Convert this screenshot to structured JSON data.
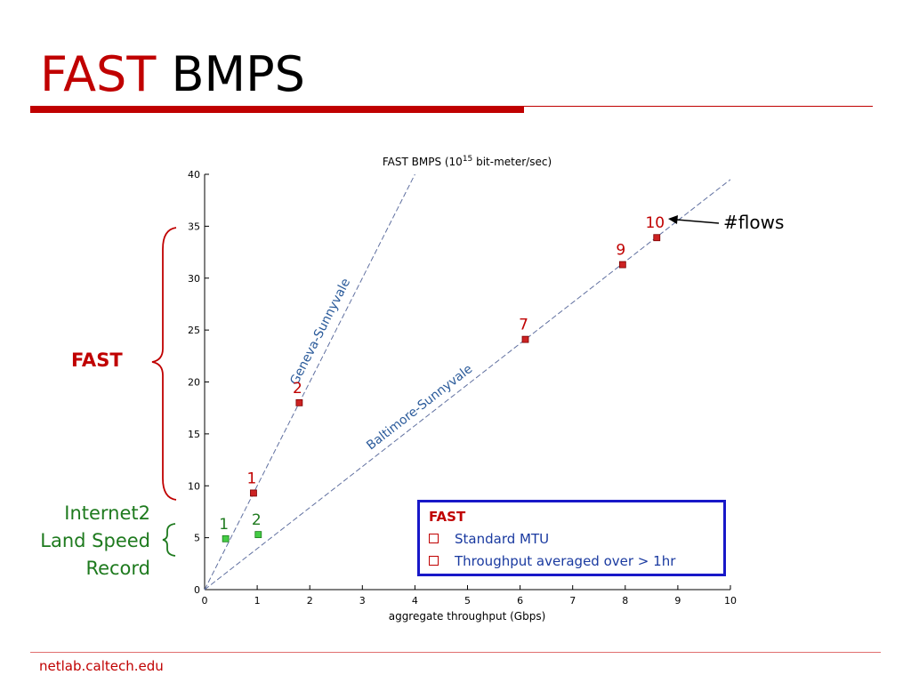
{
  "slide": {
    "title_accent": "FAST",
    "title_rest": "BMPS",
    "footer": "netlab.caltech.edu",
    "side_label_fast": "FAST",
    "side_label_i2": [
      "Internet2",
      "Land Speed",
      "Record"
    ],
    "flows_label": "#flows"
  },
  "legend": {
    "title": "FAST",
    "items": [
      "Standard MTU",
      "Throughput averaged over > 1hr"
    ]
  },
  "colors": {
    "accent": "#c00000",
    "green": "#1e7a1e",
    "blue_text": "#1a3aa0",
    "legend_border": "#1818c8",
    "fast_marker": "#cc2222",
    "i2_marker": "#44cc44"
  },
  "chart_data": {
    "type": "scatter",
    "title_parts": [
      "FAST BMPS (10",
      "15",
      " bit-meter/sec)"
    ],
    "xlabel": "aggregate throughput (Gbps)",
    "ylabel": "",
    "xlim": [
      0,
      10
    ],
    "ylim": [
      0,
      40
    ],
    "xticks": [
      0,
      1,
      2,
      3,
      4,
      5,
      6,
      7,
      8,
      9,
      10
    ],
    "yticks": [
      0,
      5,
      10,
      15,
      20,
      25,
      30,
      35,
      40
    ],
    "lines": [
      {
        "label": "Geneva-Sunnyvale",
        "points": [
          [
            0,
            0
          ],
          [
            4.0,
            40.0
          ]
        ]
      },
      {
        "label": "Baltimore-Sunnyvale",
        "points": [
          [
            0,
            0
          ],
          [
            10.0,
            39.5
          ]
        ]
      }
    ],
    "series": [
      {
        "name": "FAST",
        "points": [
          {
            "x": 0.93,
            "y": 9.3,
            "label": "1"
          },
          {
            "x": 1.8,
            "y": 18.0,
            "label": "2"
          },
          {
            "x": 6.1,
            "y": 24.1,
            "label": "7"
          },
          {
            "x": 7.95,
            "y": 31.3,
            "label": "9"
          },
          {
            "x": 8.6,
            "y": 33.9,
            "label": "10"
          }
        ]
      },
      {
        "name": "Internet2 Land Speed Record",
        "points": [
          {
            "x": 0.4,
            "y": 4.9,
            "label": "1"
          },
          {
            "x": 1.02,
            "y": 5.3,
            "label": "2"
          }
        ]
      }
    ]
  }
}
